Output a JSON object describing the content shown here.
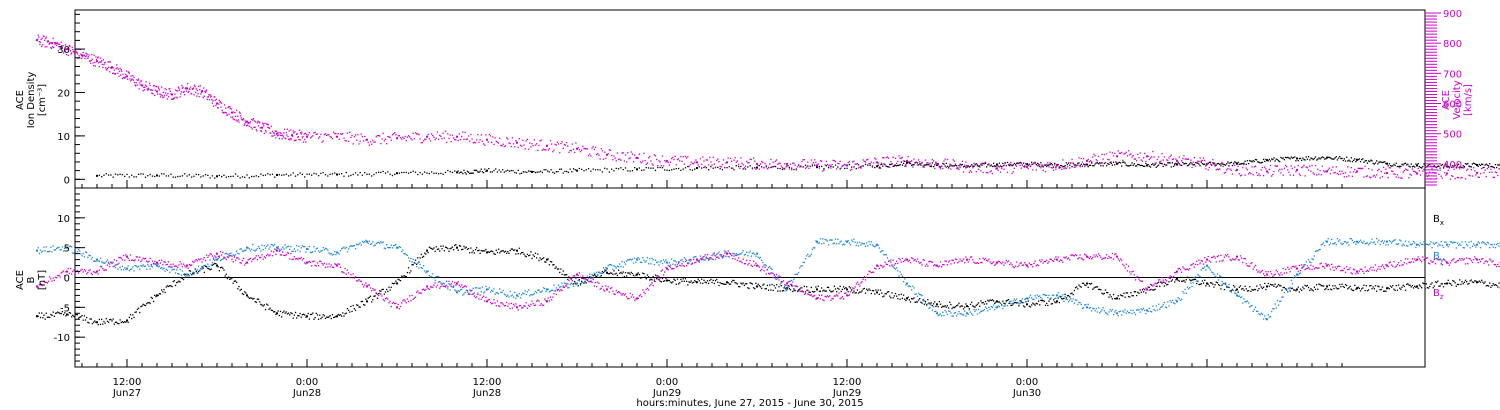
{
  "chart_data": [
    {
      "type": "scatter",
      "left_ylabel": [
        "ACE",
        "Ion Density",
        "[cm⁻³]"
      ],
      "right_ylabel": [
        "ACE",
        "Velocity",
        "[km/s]"
      ],
      "left_yticks": [
        0,
        10,
        20,
        30
      ],
      "right_yticks": [
        400,
        500,
        600,
        700,
        800,
        900
      ],
      "left_ylim": [
        -2,
        39
      ],
      "right_ylim": [
        320,
        910
      ],
      "colors": {
        "density": "#000000",
        "velocity": "#cc00cc"
      },
      "series": [
        {
          "axis": "left",
          "color": "#000000",
          "points": [
            [
              4,
              0.8
            ],
            [
              8,
              0.9
            ],
            [
              12,
              0.7
            ],
            [
              16,
              1.0
            ],
            [
              20,
              1.1
            ],
            [
              24,
              1.4
            ],
            [
              28,
              1.6
            ],
            [
              30,
              2.0
            ],
            [
              33,
              1.7
            ],
            [
              36,
              2.0
            ],
            [
              40,
              2.3
            ],
            [
              44,
              2.6
            ],
            [
              48,
              2.7
            ],
            [
              52,
              2.8
            ],
            [
              56,
              3.0
            ],
            [
              58,
              3.8
            ],
            [
              60,
              3.3
            ],
            [
              62,
              3.0
            ],
            [
              64,
              3.4
            ],
            [
              66,
              3.5
            ],
            [
              68,
              3.3
            ],
            [
              70,
              3.4
            ],
            [
              72,
              3.6
            ],
            [
              74,
              3.2
            ],
            [
              76,
              3.4
            ],
            [
              78,
              3.5
            ],
            [
              80,
              3.6
            ],
            [
              82,
              4.4
            ],
            [
              84,
              4.8
            ],
            [
              86,
              5.0
            ],
            [
              88,
              4.5
            ],
            [
              90,
              3.6
            ],
            [
              92,
              3.2
            ],
            [
              94,
              3.0
            ],
            [
              96,
              3.3
            ],
            [
              98,
              3.0
            ],
            [
              100,
              2.5
            ],
            [
              102,
              2.6
            ]
          ]
        },
        {
          "axis": "right",
          "color": "#cc00cc",
          "points": [
            [
              0,
              810
            ],
            [
              1,
              800
            ],
            [
              2,
              780
            ],
            [
              3,
              760
            ],
            [
              4,
              740
            ],
            [
              5,
              720
            ],
            [
              6,
              690
            ],
            [
              7,
              660
            ],
            [
              8,
              640
            ],
            [
              9,
              630
            ],
            [
              10,
              650
            ],
            [
              11,
              640
            ],
            [
              12,
              600
            ],
            [
              13,
              570
            ],
            [
              14,
              540
            ],
            [
              15,
              520
            ],
            [
              16,
              500
            ],
            [
              17,
              495
            ],
            [
              18,
              490
            ],
            [
              20,
              490
            ],
            [
              22,
              480
            ],
            [
              24,
              485
            ],
            [
              26,
              490
            ],
            [
              28,
              490
            ],
            [
              30,
              480
            ],
            [
              32,
              470
            ],
            [
              34,
              460
            ],
            [
              36,
              450
            ],
            [
              38,
              430
            ],
            [
              40,
              420
            ],
            [
              42,
              410
            ],
            [
              44,
              405
            ],
            [
              46,
              405
            ],
            [
              48,
              400
            ],
            [
              50,
              400
            ],
            [
              52,
              395
            ],
            [
              54,
              395
            ],
            [
              56,
              405
            ],
            [
              58,
              410
            ],
            [
              60,
              400
            ],
            [
              62,
              390
            ],
            [
              64,
              385
            ],
            [
              66,
              390
            ],
            [
              68,
              395
            ],
            [
              70,
              410
            ],
            [
              72,
              425
            ],
            [
              74,
              425
            ],
            [
              76,
              410
            ],
            [
              78,
              400
            ],
            [
              80,
              380
            ],
            [
              82,
              375
            ],
            [
              84,
              380
            ],
            [
              86,
              375
            ],
            [
              88,
              375
            ],
            [
              90,
              370
            ],
            [
              92,
              368
            ],
            [
              94,
              368
            ],
            [
              96,
              370
            ],
            [
              98,
              372
            ],
            [
              100,
              360
            ],
            [
              102,
              365
            ]
          ]
        }
      ]
    },
    {
      "type": "scatter",
      "ylabel": [
        "ACE",
        "B",
        "[nT]"
      ],
      "yticks": [
        -10,
        -5,
        0,
        5,
        10
      ],
      "ylim": [
        -15,
        15
      ],
      "legend": [
        {
          "label": "B",
          "sub": "x",
          "color": "#000000"
        },
        {
          "label": "B",
          "sub": "y",
          "color": "#1e88d8"
        },
        {
          "label": "B",
          "sub": "z",
          "color": "#cc00cc"
        }
      ],
      "series": [
        {
          "name": "Bx",
          "color": "#000000",
          "points": [
            [
              0,
              -6.5
            ],
            [
              2,
              -6.2
            ],
            [
              4,
              -7.5
            ],
            [
              6,
              -7.2
            ],
            [
              8,
              -3.0
            ],
            [
              10,
              0.5
            ],
            [
              12,
              2.0
            ],
            [
              14,
              -3.0
            ],
            [
              16,
              -6.0
            ],
            [
              18,
              -6.5
            ],
            [
              20,
              -6.5
            ],
            [
              22,
              -4.0
            ],
            [
              24,
              -1.0
            ],
            [
              26,
              4.5
            ],
            [
              28,
              5.0
            ],
            [
              30,
              4.2
            ],
            [
              32,
              4.5
            ],
            [
              34,
              3.0
            ],
            [
              36,
              -1.0
            ],
            [
              38,
              0.8
            ],
            [
              40,
              0.5
            ],
            [
              42,
              -0.5
            ],
            [
              44,
              -0.8
            ],
            [
              46,
              -0.8
            ],
            [
              48,
              -1.5
            ],
            [
              50,
              -1.8
            ],
            [
              52,
              -2.0
            ],
            [
              54,
              -2.0
            ],
            [
              56,
              -2.5
            ],
            [
              58,
              -3.5
            ],
            [
              60,
              -4.5
            ],
            [
              62,
              -4.8
            ],
            [
              64,
              -4.0
            ],
            [
              66,
              -4.5
            ],
            [
              68,
              -4.0
            ],
            [
              70,
              -1.0
            ],
            [
              72,
              -3.5
            ],
            [
              74,
              -2.0
            ],
            [
              76,
              -0.2
            ],
            [
              78,
              -1.0
            ],
            [
              80,
              -2.0
            ],
            [
              82,
              -1.5
            ],
            [
              84,
              -2.0
            ],
            [
              86,
              -1.5
            ],
            [
              88,
              -1.8
            ],
            [
              90,
              -1.8
            ],
            [
              92,
              -1.5
            ],
            [
              94,
              -1.0
            ],
            [
              96,
              -0.8
            ],
            [
              98,
              -1.5
            ],
            [
              100,
              -2.5
            ],
            [
              102,
              -2.8
            ]
          ]
        },
        {
          "name": "By",
          "color": "#1e88d8",
          "points": [
            [
              0,
              4.5
            ],
            [
              2,
              5.0
            ],
            [
              4,
              3.0
            ],
            [
              6,
              1.5
            ],
            [
              8,
              2.0
            ],
            [
              10,
              0.5
            ],
            [
              12,
              3.0
            ],
            [
              14,
              5.0
            ],
            [
              16,
              5.0
            ],
            [
              18,
              4.8
            ],
            [
              20,
              4.2
            ],
            [
              22,
              6.0
            ],
            [
              24,
              5.0
            ],
            [
              26,
              1.0
            ],
            [
              28,
              -2.5
            ],
            [
              30,
              -2.0
            ],
            [
              32,
              -3.0
            ],
            [
              34,
              -2.0
            ],
            [
              36,
              -1.0
            ],
            [
              38,
              1.5
            ],
            [
              40,
              3.0
            ],
            [
              42,
              2.5
            ],
            [
              44,
              3.0
            ],
            [
              46,
              4.0
            ],
            [
              48,
              4.0
            ],
            [
              50,
              -2.0
            ],
            [
              52,
              6.0
            ],
            [
              54,
              6.0
            ],
            [
              56,
              5.5
            ],
            [
              58,
              -1.0
            ],
            [
              60,
              -6.0
            ],
            [
              62,
              -6.0
            ],
            [
              64,
              -5.0
            ],
            [
              66,
              -3.5
            ],
            [
              68,
              -3.0
            ],
            [
              70,
              -5.0
            ],
            [
              72,
              -6.0
            ],
            [
              74,
              -5.5
            ],
            [
              76,
              -4.0
            ],
            [
              78,
              2.0
            ],
            [
              80,
              -3.0
            ],
            [
              82,
              -7.0
            ],
            [
              84,
              0.5
            ],
            [
              86,
              6.0
            ],
            [
              88,
              6.0
            ],
            [
              90,
              6.0
            ],
            [
              92,
              5.5
            ],
            [
              94,
              5.5
            ],
            [
              96,
              5.5
            ],
            [
              98,
              5.5
            ],
            [
              100,
              5.8
            ],
            [
              102,
              5.0
            ]
          ]
        },
        {
          "name": "Bz",
          "color": "#cc00cc",
          "points": [
            [
              0,
              -1.5
            ],
            [
              2,
              1.0
            ],
            [
              4,
              1.0
            ],
            [
              6,
              3.5
            ],
            [
              8,
              2.5
            ],
            [
              10,
              2.0
            ],
            [
              12,
              4.0
            ],
            [
              14,
              2.5
            ],
            [
              16,
              4.5
            ],
            [
              18,
              2.5
            ],
            [
              20,
              2.0
            ],
            [
              22,
              -1.5
            ],
            [
              24,
              -5.0
            ],
            [
              26,
              -1.5
            ],
            [
              28,
              -1.0
            ],
            [
              30,
              -4.0
            ],
            [
              32,
              -5.0
            ],
            [
              34,
              -4.0
            ],
            [
              36,
              0.5
            ],
            [
              38,
              -2.0
            ],
            [
              40,
              -3.5
            ],
            [
              42,
              1.5
            ],
            [
              44,
              3.0
            ],
            [
              46,
              4.0
            ],
            [
              48,
              2.0
            ],
            [
              50,
              -1.0
            ],
            [
              52,
              -3.5
            ],
            [
              54,
              -3.0
            ],
            [
              56,
              2.0
            ],
            [
              58,
              3.0
            ],
            [
              60,
              2.0
            ],
            [
              62,
              3.0
            ],
            [
              64,
              2.5
            ],
            [
              66,
              2.0
            ],
            [
              68,
              3.0
            ],
            [
              70,
              3.5
            ],
            [
              72,
              3.5
            ],
            [
              74,
              -2.0
            ],
            [
              76,
              1.0
            ],
            [
              78,
              3.0
            ],
            [
              80,
              3.5
            ],
            [
              82,
              0.5
            ],
            [
              84,
              1.5
            ],
            [
              86,
              2.0
            ],
            [
              88,
              1.0
            ],
            [
              90,
              2.0
            ],
            [
              92,
              3.0
            ],
            [
              94,
              2.5
            ],
            [
              96,
              3.0
            ],
            [
              98,
              2.0
            ],
            [
              100,
              2.5
            ],
            [
              102,
              1.5
            ]
          ]
        }
      ]
    }
  ],
  "x_axis": {
    "labels": [
      {
        "hours": 6,
        "time": "12:00",
        "day": "Jun27"
      },
      {
        "hours": 18,
        "time": "0:00",
        "day": "Jun28"
      },
      {
        "hours": 30,
        "time": "12:00",
        "day": "Jun28"
      },
      {
        "hours": 42,
        "time": "0:00",
        "day": "Jun29"
      },
      {
        "hours": 54,
        "time": "12:00",
        "day": "Jun29"
      },
      {
        "hours": 66,
        "time": "0:00",
        "day": "Jun30"
      }
    ],
    "range_hours": [
      0,
      72
    ],
    "title": "hours:minutes, June 27, 2015 - June 30, 2015"
  }
}
